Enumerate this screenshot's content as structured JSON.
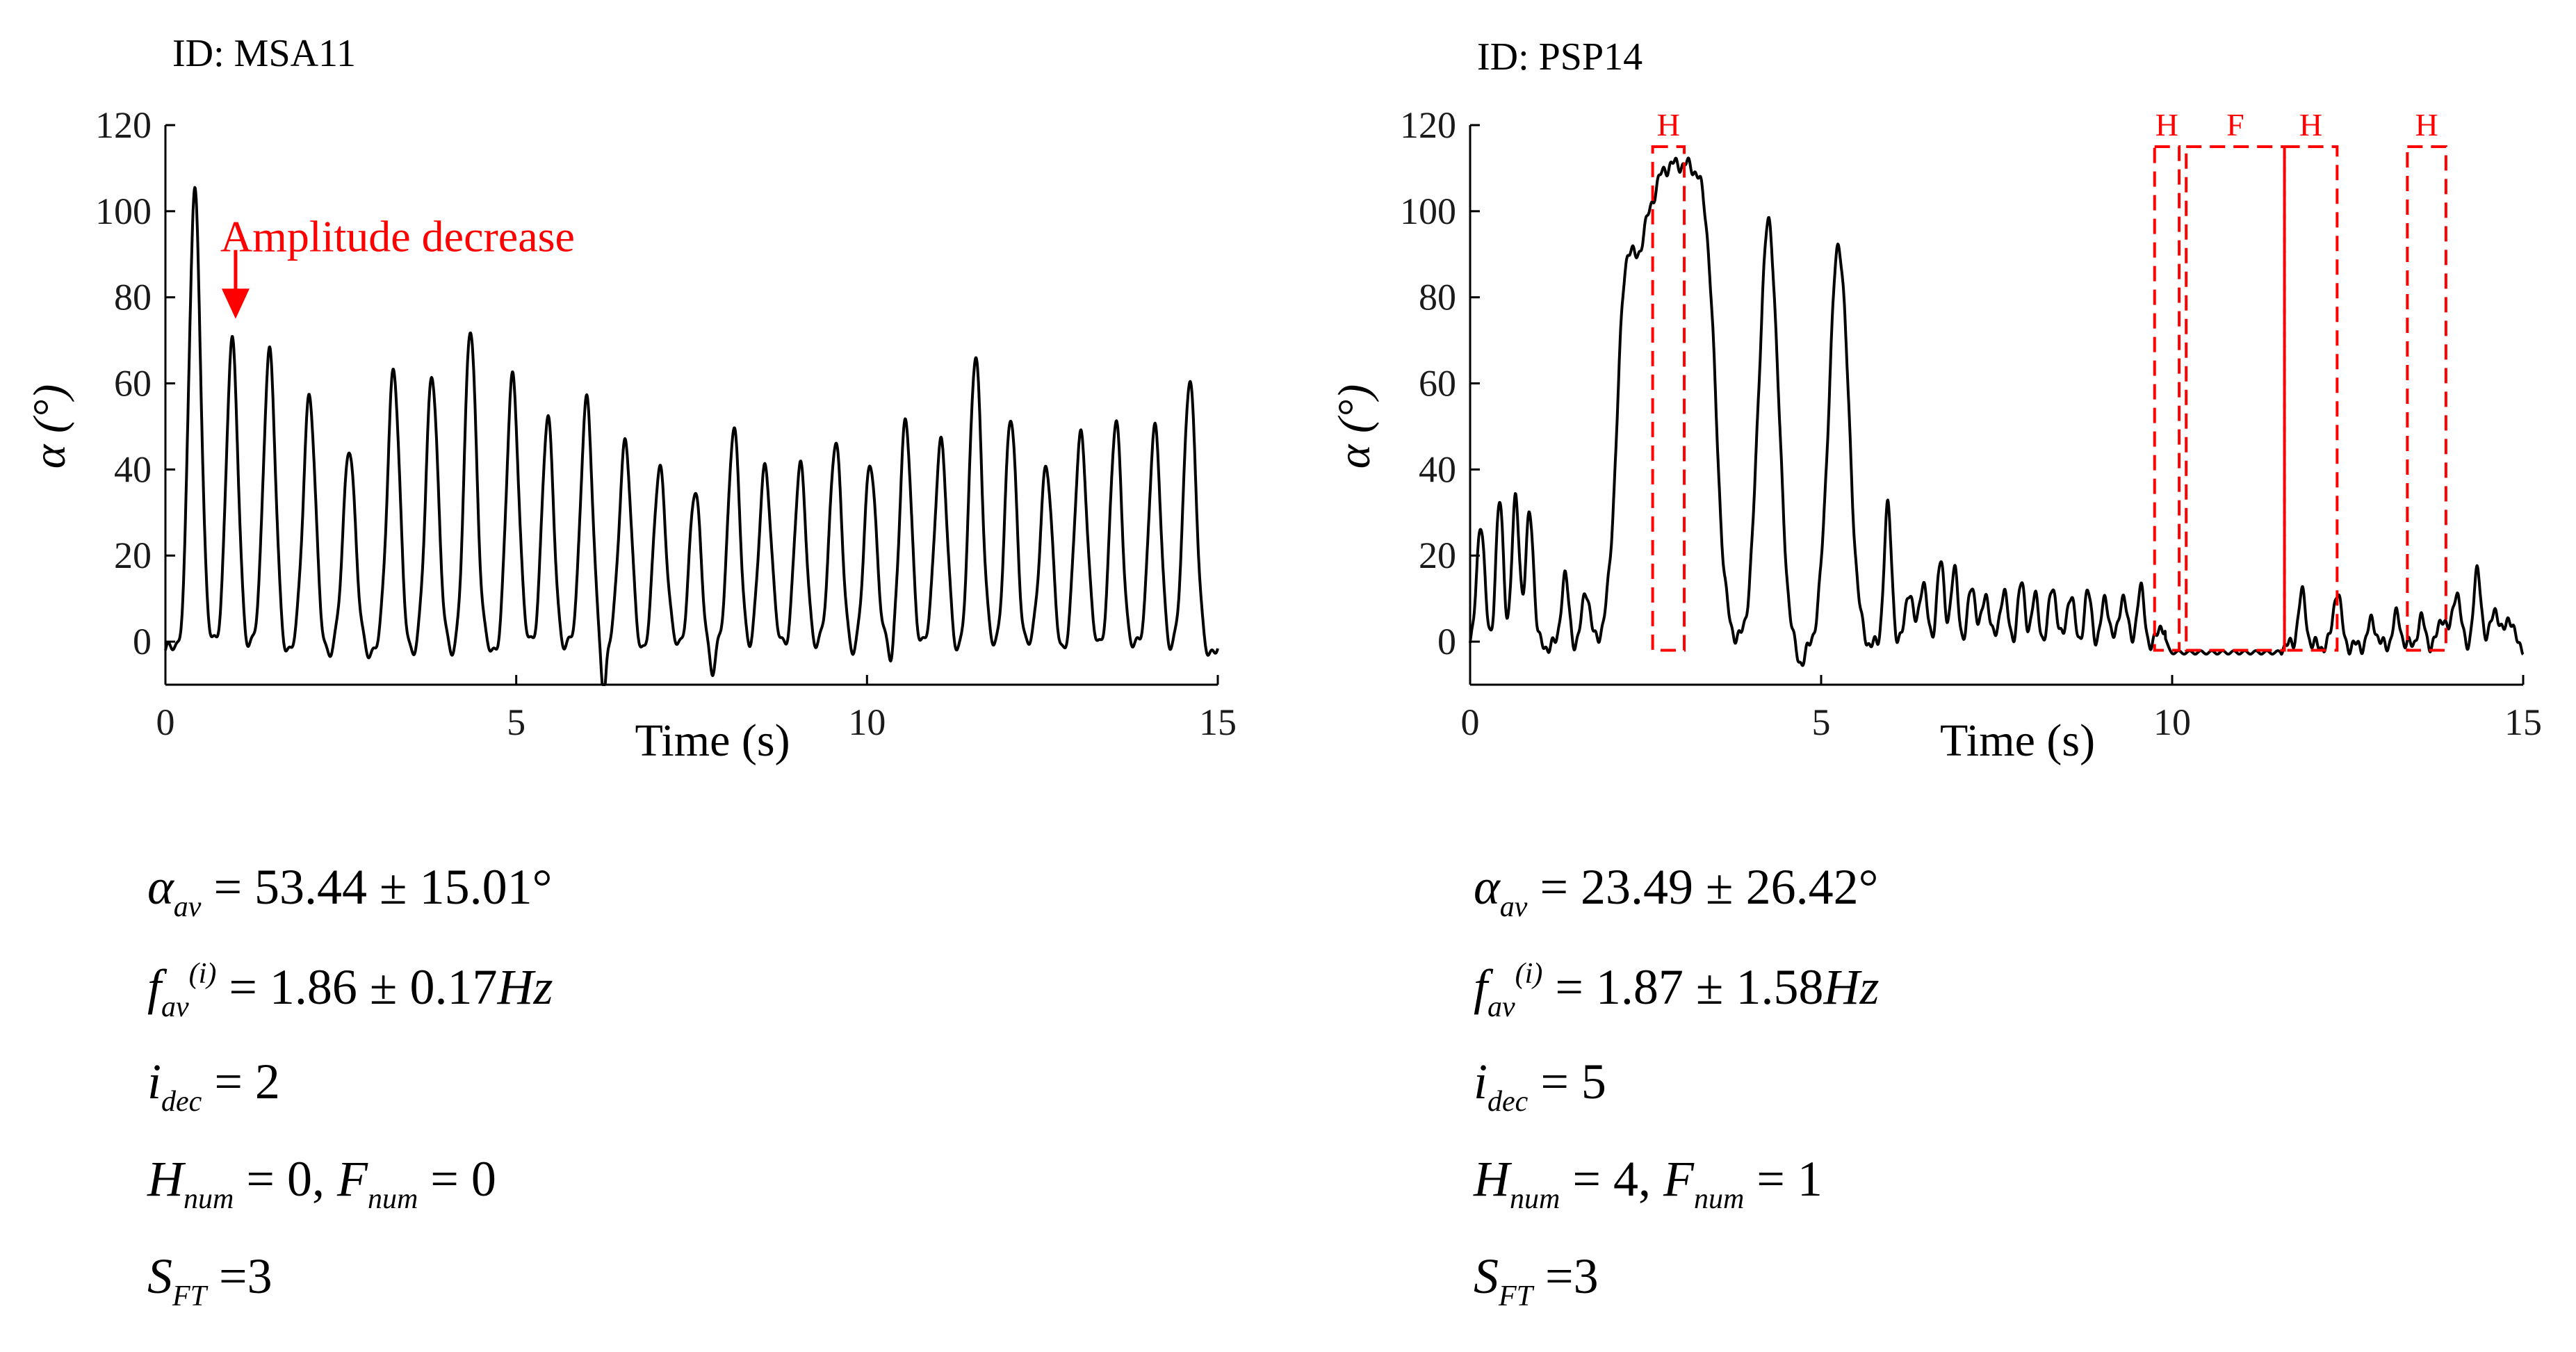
{
  "colors": {
    "signal": "#000000",
    "annotation": "#ff0000"
  },
  "chart_data": [
    {
      "type": "line",
      "panel_id": "ID: MSA11",
      "xlabel": "Time (s)",
      "ylabel": "α (°)",
      "xlim": [
        0,
        15
      ],
      "ylim": [
        -10,
        120
      ],
      "xticks": [
        0,
        5,
        10,
        15
      ],
      "yticks": [
        0,
        20,
        40,
        60,
        80,
        100,
        120
      ],
      "xtick_labels": [
        "0",
        "5",
        "10",
        "15"
      ],
      "ytick_labels": [
        "0",
        "20",
        "40",
        "60",
        "80",
        "100",
        "120"
      ],
      "annotation": {
        "text": "Amplitude decrease",
        "x": 1.0,
        "y": 78
      },
      "series": [
        {
          "name": "angle",
          "peaks": [
            {
              "t": 0.42,
              "a": 103
            },
            {
              "t": 0.95,
              "a": 68
            },
            {
              "t": 1.48,
              "a": 67
            },
            {
              "t": 2.05,
              "a": 57
            },
            {
              "t": 2.62,
              "a": 45
            },
            {
              "t": 3.25,
              "a": 63
            },
            {
              "t": 3.8,
              "a": 62
            },
            {
              "t": 4.35,
              "a": 72
            },
            {
              "t": 4.95,
              "a": 61
            },
            {
              "t": 5.45,
              "a": 50
            },
            {
              "t": 6.0,
              "a": 55
            },
            {
              "t": 6.55,
              "a": 46
            },
            {
              "t": 7.05,
              "a": 40
            },
            {
              "t": 7.55,
              "a": 33
            },
            {
              "t": 8.1,
              "a": 48
            },
            {
              "t": 8.55,
              "a": 40
            },
            {
              "t": 9.05,
              "a": 39
            },
            {
              "t": 9.55,
              "a": 46
            },
            {
              "t": 10.05,
              "a": 41
            },
            {
              "t": 10.55,
              "a": 49
            },
            {
              "t": 11.05,
              "a": 46
            },
            {
              "t": 11.55,
              "a": 66
            },
            {
              "t": 12.05,
              "a": 50
            },
            {
              "t": 12.55,
              "a": 40
            },
            {
              "t": 13.05,
              "a": 48
            },
            {
              "t": 13.55,
              "a": 49
            },
            {
              "t": 14.1,
              "a": 48
            },
            {
              "t": 14.6,
              "a": 61
            }
          ]
        }
      ]
    },
    {
      "type": "line",
      "panel_id": "ID: PSP14",
      "xlabel": "Time (s)",
      "ylabel": "α (°)",
      "xlim": [
        0,
        15
      ],
      "ylim": [
        -10,
        120
      ],
      "xticks": [
        0,
        5,
        10,
        15
      ],
      "yticks": [
        0,
        20,
        40,
        60,
        80,
        100,
        120
      ],
      "xtick_labels": [
        "0",
        "5",
        "10",
        "15"
      ],
      "ytick_labels": [
        "0",
        "20",
        "40",
        "60",
        "80",
        "100",
        "120"
      ],
      "event_boxes": [
        {
          "label": "H",
          "t0": 2.6,
          "t1": 3.05,
          "a0": -2,
          "a1": 115
        },
        {
          "label": "H",
          "t0": 9.75,
          "t1": 10.1,
          "a0": -2,
          "a1": 115
        },
        {
          "label": "F",
          "t0": 10.2,
          "t1": 11.6,
          "a0": -2,
          "a1": 115
        },
        {
          "label": "H",
          "t0": 11.6,
          "t1": 12.35,
          "a0": -2,
          "a1": 115
        },
        {
          "label": "H",
          "t0": 13.35,
          "t1": 13.9,
          "a0": -2,
          "a1": 115
        }
      ],
      "series": [
        {
          "name": "angle",
          "peaks": [
            {
              "t": 0.15,
              "a": 28
            },
            {
              "t": 0.42,
              "a": 32
            },
            {
              "t": 0.65,
              "a": 33
            },
            {
              "t": 0.85,
              "a": 30
            },
            {
              "t": 1.35,
              "a": 15
            },
            {
              "t": 1.65,
              "a": 12
            },
            {
              "t": 4.25,
              "a": 97
            },
            {
              "t": 5.25,
              "a": 92
            },
            {
              "t": 5.95,
              "a": 31
            },
            {
              "t": 6.25,
              "a": 12
            },
            {
              "t": 6.45,
              "a": 14
            },
            {
              "t": 6.7,
              "a": 18
            },
            {
              "t": 6.9,
              "a": 16
            },
            {
              "t": 7.15,
              "a": 13
            },
            {
              "t": 7.35,
              "a": 11
            },
            {
              "t": 7.6,
              "a": 12
            },
            {
              "t": 7.85,
              "a": 13
            },
            {
              "t": 8.05,
              "a": 10
            },
            {
              "t": 8.3,
              "a": 13
            },
            {
              "t": 8.55,
              "a": 11
            },
            {
              "t": 8.8,
              "a": 11
            },
            {
              "t": 9.05,
              "a": 10
            },
            {
              "t": 9.3,
              "a": 11
            },
            {
              "t": 9.55,
              "a": 12
            },
            {
              "t": 9.85,
              "a": 4
            },
            {
              "t": 11.85,
              "a": 11
            },
            {
              "t": 12.35,
              "a": 12
            },
            {
              "t": 12.85,
              "a": 5
            },
            {
              "t": 13.2,
              "a": 6
            },
            {
              "t": 13.55,
              "a": 5
            },
            {
              "t": 13.85,
              "a": 6
            },
            {
              "t": 14.05,
              "a": 12
            },
            {
              "t": 14.35,
              "a": 16
            },
            {
              "t": 14.6,
              "a": 8
            },
            {
              "t": 14.8,
              "a": 6
            }
          ]
        }
      ]
    }
  ],
  "stats": [
    {
      "alpha_symbol": "α",
      "alpha_sub": "av",
      "alpha_value": " = 53.44 ± 15.01°",
      "f_symbol": "f",
      "f_sub": "av",
      "f_sup": "(i)",
      "f_value": " = 1.86 ± 0.17",
      "f_unit": "Hz",
      "i_symbol": "i",
      "i_sub": "dec",
      "i_value": " = 2",
      "h_symbol": "H",
      "h_sub": "num",
      "h_value": " = 0, ",
      "fn_symbol": "F",
      "fn_sub": "num",
      "fn_value": " = 0",
      "s_symbol": "S",
      "s_sub": "FT",
      "s_value": " =3"
    },
    {
      "alpha_symbol": "α",
      "alpha_sub": "av",
      "alpha_value": " = 23.49 ± 26.42°",
      "f_symbol": "f",
      "f_sub": "av",
      "f_sup": "(i)",
      "f_value": " = 1.87 ± 1.58",
      "f_unit": "Hz",
      "i_symbol": "i",
      "i_sub": "dec",
      "i_value": " = 5",
      "h_symbol": "H",
      "h_sub": "num",
      "h_value": " = 4, ",
      "fn_symbol": "F",
      "fn_sub": "num",
      "fn_value": " = 1",
      "s_symbol": "S",
      "s_sub": "FT",
      "s_value": " =3"
    }
  ]
}
